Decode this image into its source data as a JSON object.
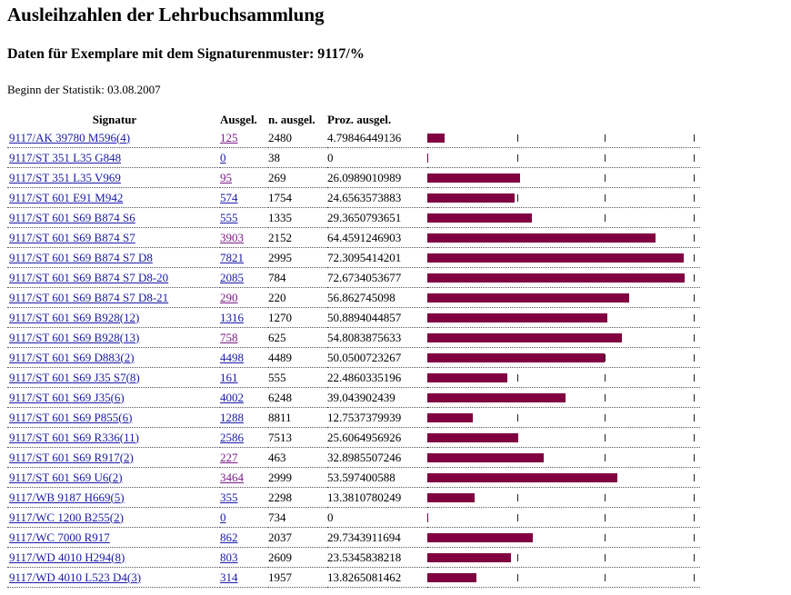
{
  "page": {
    "title": "Ausleihzahlen der Lehrbuchsammlung",
    "subtitle": "Daten für Exemplare mit dem Signaturenmuster: 9117/%",
    "since": "Beginn der Statistik: 03.08.2007"
  },
  "table": {
    "headers": {
      "signatur": "Signatur",
      "ausgel": "Ausgel.",
      "n_ausgel": "n. ausgel.",
      "proz": "Proz. ausgel."
    },
    "bar_color": "#800040",
    "rows": [
      {
        "sig": "9117/AK 39780 M596(4)",
        "ausgel": "125",
        "n_ausgel": "2480",
        "proz": "4.79846449136",
        "pct": 4.79846449136,
        "visited": true
      },
      {
        "sig": "9117/ST 351 L35 G848",
        "ausgel": "0",
        "n_ausgel": "38",
        "proz": "0",
        "pct": 0,
        "visited": false
      },
      {
        "sig": "9117/ST 351 L35 V969",
        "ausgel": "95",
        "n_ausgel": "269",
        "proz": "26.0989010989",
        "pct": 26.0989010989,
        "visited": true
      },
      {
        "sig": "9117/ST 601 E91 M942",
        "ausgel": "574",
        "n_ausgel": "1754",
        "proz": "24.6563573883",
        "pct": 24.6563573883,
        "visited": false
      },
      {
        "sig": "9117/ST 601 S69 B874 S6",
        "ausgel": "555",
        "n_ausgel": "1335",
        "proz": "29.3650793651",
        "pct": 29.3650793651,
        "visited": false
      },
      {
        "sig": "9117/ST 601 S69 B874 S7",
        "ausgel": "3903",
        "n_ausgel": "2152",
        "proz": "64.4591246903",
        "pct": 64.4591246903,
        "visited": true
      },
      {
        "sig": "9117/ST 601 S69 B874 S7 D8",
        "ausgel": "7821",
        "n_ausgel": "2995",
        "proz": "72.3095414201",
        "pct": 72.3095414201,
        "visited": false
      },
      {
        "sig": "9117/ST 601 S69 B874 S7 D8-20",
        "ausgel": "2085",
        "n_ausgel": "784",
        "proz": "72.6734053677",
        "pct": 72.6734053677,
        "visited": false
      },
      {
        "sig": "9117/ST 601 S69 B874 S7 D8-21",
        "ausgel": "290",
        "n_ausgel": "220",
        "proz": "56.862745098",
        "pct": 56.862745098,
        "visited": true
      },
      {
        "sig": "9117/ST 601 S69 B928(12)",
        "ausgel": "1316",
        "n_ausgel": "1270",
        "proz": "50.8894044857",
        "pct": 50.8894044857,
        "visited": false
      },
      {
        "sig": "9117/ST 601 S69 B928(13)",
        "ausgel": "758",
        "n_ausgel": "625",
        "proz": "54.8083875633",
        "pct": 54.8083875633,
        "visited": true
      },
      {
        "sig": "9117/ST 601 S69 D883(2)",
        "ausgel": "4498",
        "n_ausgel": "4489",
        "proz": "50.0500723267",
        "pct": 50.0500723267,
        "visited": false
      },
      {
        "sig": "9117/ST 601 S69 J35 S7(8)",
        "ausgel": "161",
        "n_ausgel": "555",
        "proz": "22.4860335196",
        "pct": 22.4860335196,
        "visited": false
      },
      {
        "sig": "9117/ST 601 S69 J35(6)",
        "ausgel": "4002",
        "n_ausgel": "6248",
        "proz": "39.043902439",
        "pct": 39.043902439,
        "visited": false
      },
      {
        "sig": "9117/ST 601 S69 P855(6)",
        "ausgel": "1288",
        "n_ausgel": "8811",
        "proz": "12.7537379939",
        "pct": 12.7537379939,
        "visited": false
      },
      {
        "sig": "9117/ST 601 S69 R336(11)",
        "ausgel": "2586",
        "n_ausgel": "7513",
        "proz": "25.6064956926",
        "pct": 25.6064956926,
        "visited": false
      },
      {
        "sig": "9117/ST 601 S69 R917(2)",
        "ausgel": "227",
        "n_ausgel": "463",
        "proz": "32.8985507246",
        "pct": 32.8985507246,
        "visited": true
      },
      {
        "sig": "9117/ST 601 S69 U6(2)",
        "ausgel": "3464",
        "n_ausgel": "2999",
        "proz": "53.597400588",
        "pct": 53.597400588,
        "visited": true
      },
      {
        "sig": "9117/WB 9187 H669(5)",
        "ausgel": "355",
        "n_ausgel": "2298",
        "proz": "13.3810780249",
        "pct": 13.3810780249,
        "visited": false
      },
      {
        "sig": "9117/WC 1200 B255(2)",
        "ausgel": "0",
        "n_ausgel": "734",
        "proz": "0",
        "pct": 0,
        "visited": false
      },
      {
        "sig": "9117/WC 7000 R917",
        "ausgel": "862",
        "n_ausgel": "2037",
        "proz": "29.7343911694",
        "pct": 29.7343911694,
        "visited": false
      },
      {
        "sig": "9117/WD 4010 H294(8)",
        "ausgel": "803",
        "n_ausgel": "2609",
        "proz": "23.5345838218",
        "pct": 23.5345838218,
        "visited": false
      },
      {
        "sig": "9117/WD 4010 L523 D4(3)",
        "ausgel": "314",
        "n_ausgel": "1957",
        "proz": "13.8265081462",
        "pct": 13.8265081462,
        "visited": false
      }
    ]
  }
}
